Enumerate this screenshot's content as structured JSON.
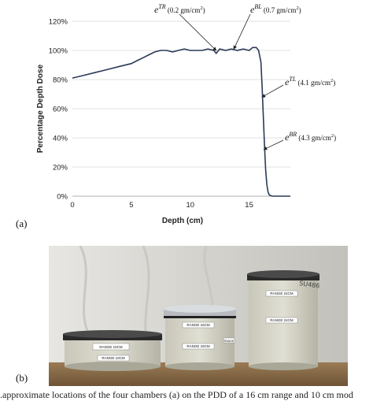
{
  "panel_a_label": "(a)",
  "panel_b_label": "(b)",
  "caption": "...approximate locations of the four chambers (a) on the PDD of a 16 cm range and 10 cm mod",
  "chart_data": {
    "type": "line",
    "xlabel": "Depth (cm)",
    "ylabel": "Percentage Depth Dose",
    "xlim": [
      0,
      18.5
    ],
    "ylim": [
      0,
      120
    ],
    "xticks": [
      "0",
      "5",
      "10",
      "15"
    ],
    "xtick_values": [
      0,
      5,
      10,
      15
    ],
    "yticks": [
      "0%",
      "20%",
      "40%",
      "60%",
      "80%",
      "100%",
      "120%"
    ],
    "ytick_values": [
      0,
      20,
      40,
      60,
      80,
      100,
      120
    ],
    "grid": "horizontal",
    "series": [
      {
        "x": [
          0,
          1,
          2,
          3,
          4,
          5,
          5.5,
          6,
          6.5,
          7,
          7.5,
          8,
          8.5,
          9,
          9.5,
          10,
          10.5,
          11,
          11.5,
          12,
          12.2,
          12.5,
          13,
          13.5,
          14,
          14.5,
          15,
          15.3,
          15.6,
          15.8,
          16,
          16.1,
          16.2,
          16.3,
          16.4,
          16.5,
          16.6,
          16.7,
          16.8,
          17,
          17.5,
          18,
          18.5
        ],
        "y": [
          81,
          83,
          85,
          87,
          89,
          91,
          93,
          95,
          97,
          99,
          100,
          100,
          99,
          100,
          101,
          100,
          100,
          100,
          101,
          100,
          98,
          101,
          100,
          101,
          100,
          101,
          100,
          102,
          102,
          100,
          92,
          75,
          55,
          35,
          18,
          8,
          3,
          1,
          0.5,
          0,
          0,
          0,
          0
        ]
      }
    ],
    "annotations": [
      {
        "sym": "e",
        "sup": "TR",
        "text": "(0.2 gm/cm",
        "exp": "2",
        "close": ")",
        "target_x": 12.2,
        "target_y": 100
      },
      {
        "sym": "e",
        "sup": "BL",
        "text": "(0.7 gm/cm",
        "exp": "2",
        "close": ")",
        "target_x": 13.7,
        "target_y": 101
      },
      {
        "sym": "e",
        "sup": "TL",
        "text": "(4.1 gm/cm",
        "exp": "2",
        "close": ")",
        "target_x": 16.1,
        "target_y": 68
      },
      {
        "sym": "e",
        "sup": "BR",
        "text": "(4.3 gm/cm",
        "exp": "2",
        "close": ")",
        "target_x": 16.25,
        "target_y": 32
      }
    ]
  },
  "photo": {
    "containers": [
      {
        "label_top": "RANGE 10CM",
        "label_bottom": "RANGE 10CM"
      },
      {
        "label_top": "RANGE 16CM",
        "label_bottom": "RANGE 16CM",
        "label_side": "RANGE"
      },
      {
        "label_top": "RANGE 24CM",
        "label_bottom": "RANGE 24CM",
        "handwriting": "SU486"
      }
    ]
  }
}
